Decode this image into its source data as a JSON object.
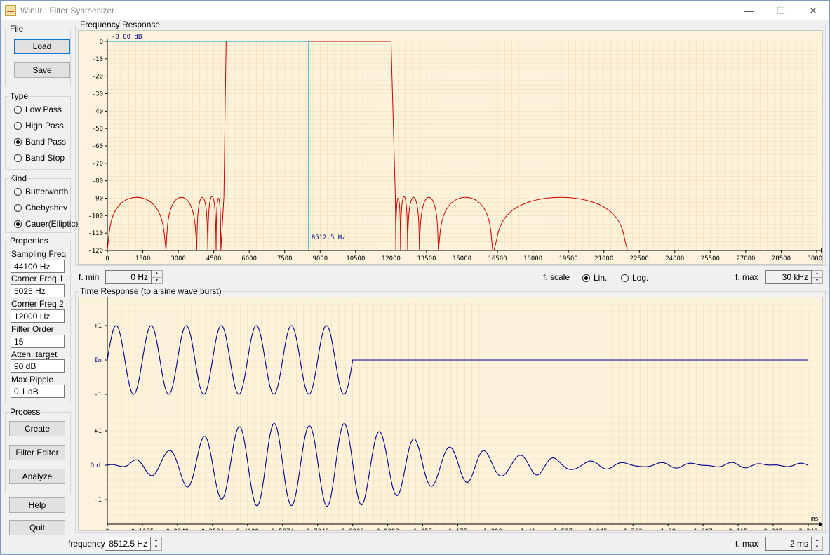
{
  "window": {
    "title": "WinIIr : Filter Synthesizer",
    "minimize": "—",
    "maximize": "☐",
    "close": "✕"
  },
  "file": {
    "label": "File",
    "load": "Load",
    "save": "Save"
  },
  "type": {
    "label": "Type",
    "options": [
      "Low Pass",
      "High Pass",
      "Band Pass",
      "Band Stop"
    ],
    "selected": "Band Pass"
  },
  "kind": {
    "label": "Kind",
    "options": [
      "Butterworth",
      "Chebyshev",
      "Cauer(Elliptic)"
    ],
    "selected": "Cauer(Elliptic)"
  },
  "properties": {
    "label": "Properties",
    "sampling_freq_label": "Sampling Freq",
    "sampling_freq": "44100 Hz",
    "corner1_label": "Corner Freq 1",
    "corner1": "5025 Hz",
    "corner2_label": "Corner Freq 2",
    "corner2": "12000 Hz",
    "order_label": "Filter Order",
    "order": "15",
    "atten_label": "Atten. target",
    "atten": "90 dB",
    "ripple_label": "Max Ripple",
    "ripple": "0.1 dB"
  },
  "process": {
    "label": "Process",
    "create": "Create",
    "filter_editor": "Filter Editor",
    "analyze": "Analyze"
  },
  "help": "Help",
  "quit": "Quit",
  "freq_response": {
    "label": "Frequency Response",
    "cursor_db": "-0.00 dB",
    "cursor_freq": "8512.5 Hz",
    "y_ticks": [
      "0",
      "-10",
      "-20",
      "-30",
      "-40",
      "-50",
      "-60",
      "-70",
      "-80",
      "-90",
      "-100",
      "-110",
      "-120"
    ],
    "x_ticks": [
      "0",
      "1500",
      "3000",
      "4500",
      "6000",
      "7500",
      "9000",
      "10500",
      "12000",
      "13500",
      "15000",
      "16500",
      "18000",
      "19500",
      "21000",
      "22500",
      "24000",
      "25500",
      "27000",
      "28500",
      "30000"
    ]
  },
  "fmin": {
    "label": "f. min",
    "value": "0 Hz"
  },
  "fscale": {
    "label": "f. scale",
    "lin": "Lin.",
    "log": "Log.",
    "selected": "Lin."
  },
  "fmax": {
    "label": "f. max",
    "value": "30 kHz"
  },
  "time_response": {
    "label": "Time Response (to a sine wave burst)",
    "in_label": "In",
    "out_label": "Out",
    "plus1": "+1",
    "minus1": "-1",
    "unit": "ms",
    "x_ticks": [
      "0",
      "0.1175",
      "0.2349",
      "0.3524",
      "0.4699",
      "0.5874",
      "0.7048",
      "0.8223",
      "0.9398",
      "1.057",
      "1.175",
      "1.292",
      "1.41",
      "1.527",
      "1.645",
      "1.762",
      "1.88",
      "1.997",
      "2.115",
      "2.232",
      "2.349"
    ]
  },
  "frequency": {
    "label": "frequency",
    "value": "8512.5 Hz"
  },
  "tmax": {
    "label": "t. max",
    "value": "2 ms"
  },
  "colors": {
    "plot_bg": "#fdf3dc",
    "grid": "#f3dcb0",
    "response": "#cc0000",
    "cursor": "#00a0c8",
    "signal": "#00008b"
  }
}
